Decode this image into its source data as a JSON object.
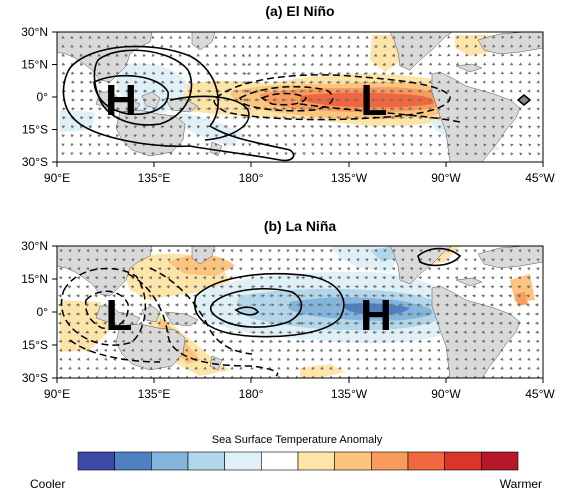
{
  "panels": [
    {
      "title": "(a) El Niño",
      "high_label": "H",
      "low_label": "L",
      "lat_ticks": [
        "30°N",
        "15°N",
        "0°",
        "15°S",
        "30°S"
      ],
      "lon_ticks": [
        "90°E",
        "135°E",
        "180°",
        "135°W",
        "90°W",
        "45°W"
      ]
    },
    {
      "title": "(b) La Niña",
      "high_label": "H",
      "low_label": "L",
      "lat_ticks": [
        "30°N",
        "15°N",
        "0°",
        "15°S",
        "30°S"
      ],
      "lon_ticks": [
        "90°E",
        "135°E",
        "180°",
        "135°W",
        "90°W",
        "45°W"
      ]
    }
  ],
  "colorbar": {
    "title": "Sea Surface Temperature Anomaly",
    "left_label": "Cooler",
    "right_label": "Warmer",
    "colors": [
      "#3a4aa6",
      "#4f80c2",
      "#83b4dc",
      "#b3d7ea",
      "#dff0f7",
      "#ffffff",
      "#fde4a8",
      "#fcc47c",
      "#f89b5d",
      "#f0673f",
      "#d93628",
      "#b5172b"
    ]
  },
  "colors": {
    "land": "#d9d9d9",
    "frame": "#000000",
    "vector": "#6f6f6f"
  }
}
